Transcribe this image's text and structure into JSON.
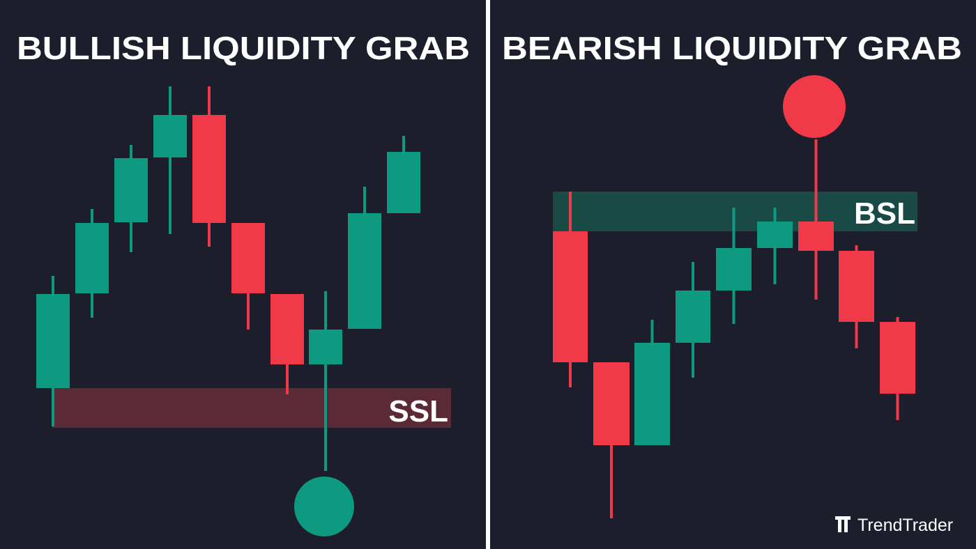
{
  "panels": [
    {
      "title": "BULLISH LIQUIDITY GRAB",
      "zone_label": "SSL"
    },
    {
      "title": "BEARISH LIQUIDITY GRAB",
      "zone_label": "BSL"
    }
  ],
  "brand": "TrendTrader"
}
